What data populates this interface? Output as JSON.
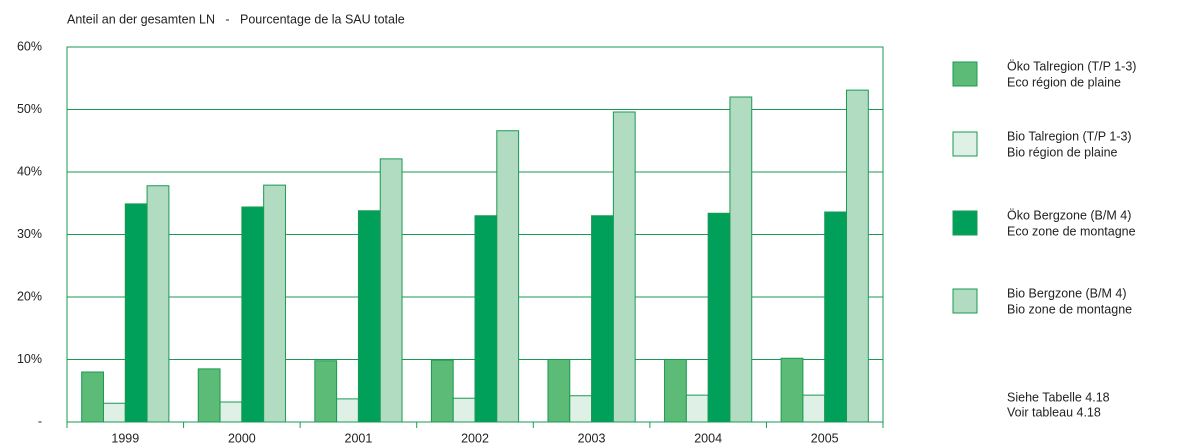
{
  "chart_data": {
    "type": "bar",
    "title": "Anteil an der gesamten LN   -   Pourcentage de la SAU totale",
    "categories": [
      "1999",
      "2000",
      "2001",
      "2002",
      "2003",
      "2004",
      "2005"
    ],
    "series": [
      {
        "name": "Öko Talregion (T/P 1-3)",
        "name_fr": "Eco région de plaine",
        "color": "#5dbb78",
        "values": [
          8.0,
          8.5,
          9.8,
          9.9,
          10.0,
          10.0,
          10.2
        ]
      },
      {
        "name": "Bio Talregion (T/P 1-3)",
        "name_fr": "Bio région de plaine",
        "color": "#dff0e6",
        "values": [
          3.0,
          3.2,
          3.7,
          3.8,
          4.2,
          4.3,
          4.3
        ]
      },
      {
        "name": "Öko Bergzone (B/M 4)",
        "name_fr": "Eco zone de montagne",
        "color": "#00a05a",
        "values": [
          34.9,
          34.4,
          33.8,
          33.0,
          33.0,
          33.4,
          33.6
        ]
      },
      {
        "name": "Bio Bergzone (B/M 4)",
        "name_fr": "Bio zone de montagne",
        "color": "#b1dcc2",
        "values": [
          37.8,
          37.9,
          42.1,
          46.6,
          49.6,
          52.0,
          53.1
        ]
      }
    ],
    "ylim": [
      0,
      60
    ],
    "yticks": [
      {
        "value": 0,
        "label": "-"
      },
      {
        "value": 10,
        "label": "10%"
      },
      {
        "value": 20,
        "label": "20%"
      },
      {
        "value": 30,
        "label": "30%"
      },
      {
        "value": 40,
        "label": "40%"
      },
      {
        "value": 50,
        "label": "50%"
      },
      {
        "value": 60,
        "label": "60%"
      }
    ],
    "grid": true,
    "legend": "right",
    "notes": [
      "Siehe Tabelle 4.18",
      "Voir tableau 4.18"
    ]
  }
}
